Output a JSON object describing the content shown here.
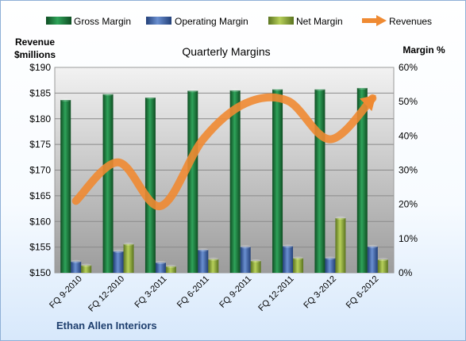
{
  "chart_data": {
    "type": "bar+line",
    "title": "Quarterly Margins",
    "company": "Ethan Allen Interiors",
    "left_axis_label_line1": "Revenue",
    "left_axis_label_line2": "$millions",
    "right_axis_label": "Margin %",
    "categories": [
      "FQ 9-2010",
      "FQ 12-2010",
      "FQ 3-2011",
      "FQ 6-2011",
      "FQ 9-2011",
      "FQ 12-2011",
      "FQ 3-2012",
      "FQ 6-2012"
    ],
    "left_ticks": [
      "$150",
      "$155",
      "$160",
      "$165",
      "$170",
      "$175",
      "$180",
      "$185",
      "$190"
    ],
    "right_ticks": [
      "0%",
      "10%",
      "20%",
      "30%",
      "40%",
      "50%",
      "60%"
    ],
    "left_ylim": [
      150,
      190
    ],
    "right_ylim": [
      0,
      60
    ],
    "series": [
      {
        "name": "Gross Margin",
        "axis": "right",
        "kind": "bar",
        "color": "#1e7a3c",
        "values": [
          50.5,
          52.2,
          51.2,
          53.2,
          53.3,
          53.6,
          53.6,
          54.0
        ]
      },
      {
        "name": "Operating Margin",
        "axis": "right",
        "kind": "bar",
        "color": "#3f63a8",
        "values": [
          3.3,
          6.3,
          3.0,
          6.7,
          7.6,
          7.8,
          4.3,
          7.7
        ]
      },
      {
        "name": "Net Margin",
        "axis": "right",
        "kind": "bar",
        "color": "#8caa3a",
        "values": [
          2.2,
          8.4,
          1.9,
          4.0,
          3.5,
          4.3,
          16.0,
          3.9
        ]
      },
      {
        "name": "Revenues",
        "axis": "left",
        "kind": "line",
        "color": "#ef8a32",
        "values": [
          164.0,
          171.5,
          163.0,
          176.0,
          183.0,
          183.5,
          176.0,
          184.0
        ]
      }
    ],
    "grid": true,
    "legend": "top"
  }
}
